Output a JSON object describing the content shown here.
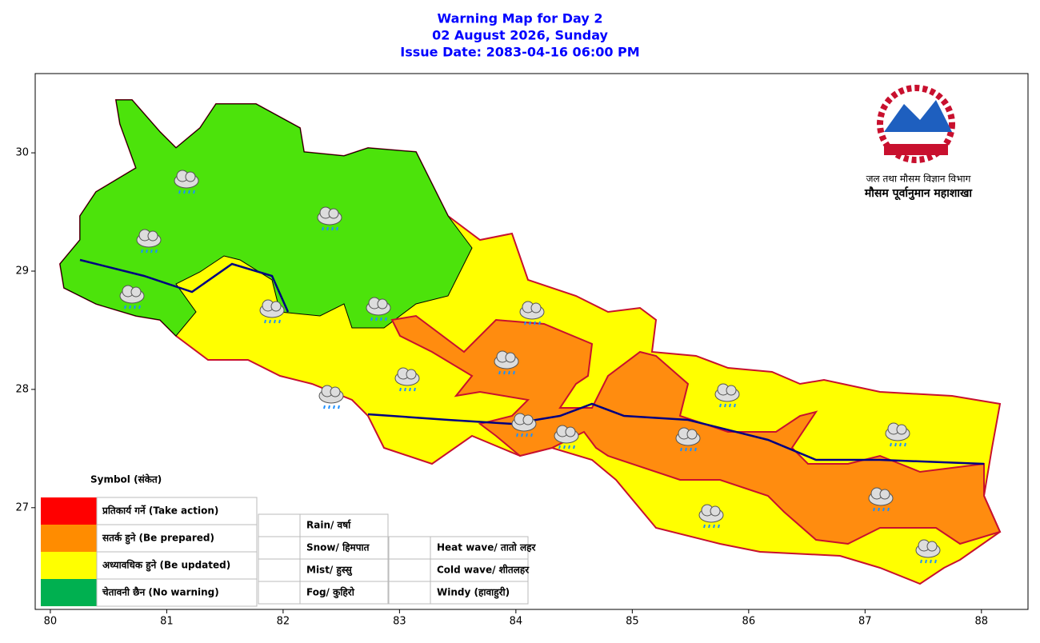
{
  "header": {
    "title": "Warning Map for Day 2",
    "date": "02 August 2026, Sunday",
    "issue": "Issue Date: 2083-04-16 06:00 PM"
  },
  "axes": {
    "xlim": [
      79.87,
      88.4
    ],
    "ylim": [
      26.14,
      30.67
    ],
    "xticks": [
      80,
      81,
      82,
      83,
      84,
      85,
      86,
      87,
      88
    ],
    "yticks": [
      27,
      28,
      29,
      30
    ]
  },
  "logo": {
    "line1": "जल तथा मौसम विज्ञान विभाग",
    "line2": "मौसम पूर्वानुमान महाशाखा"
  },
  "legend": {
    "title": "Symbol (संकेत)",
    "levels": [
      {
        "label": "प्रतिकार्य गर्ने (Take action)",
        "color": "#ff0000"
      },
      {
        "label": "सतर्क हुने (Be prepared)",
        "color": "#ff8c00"
      },
      {
        "label": "अध्यावधिक हुने (Be updated)",
        "color": "#ffff00"
      },
      {
        "label": "चेतावनी छैन (No warning)",
        "color": "#00b050"
      }
    ],
    "symbols": [
      "Rain/ वर्षा",
      "Snow/ हिमपात",
      "Mist/ हुस्सु",
      "Fog/ कुहिरो",
      "Heat wave/ तातो लहर",
      "Cold wave/ शीतलहर",
      "Windy (हावाहुरी)"
    ]
  }
}
